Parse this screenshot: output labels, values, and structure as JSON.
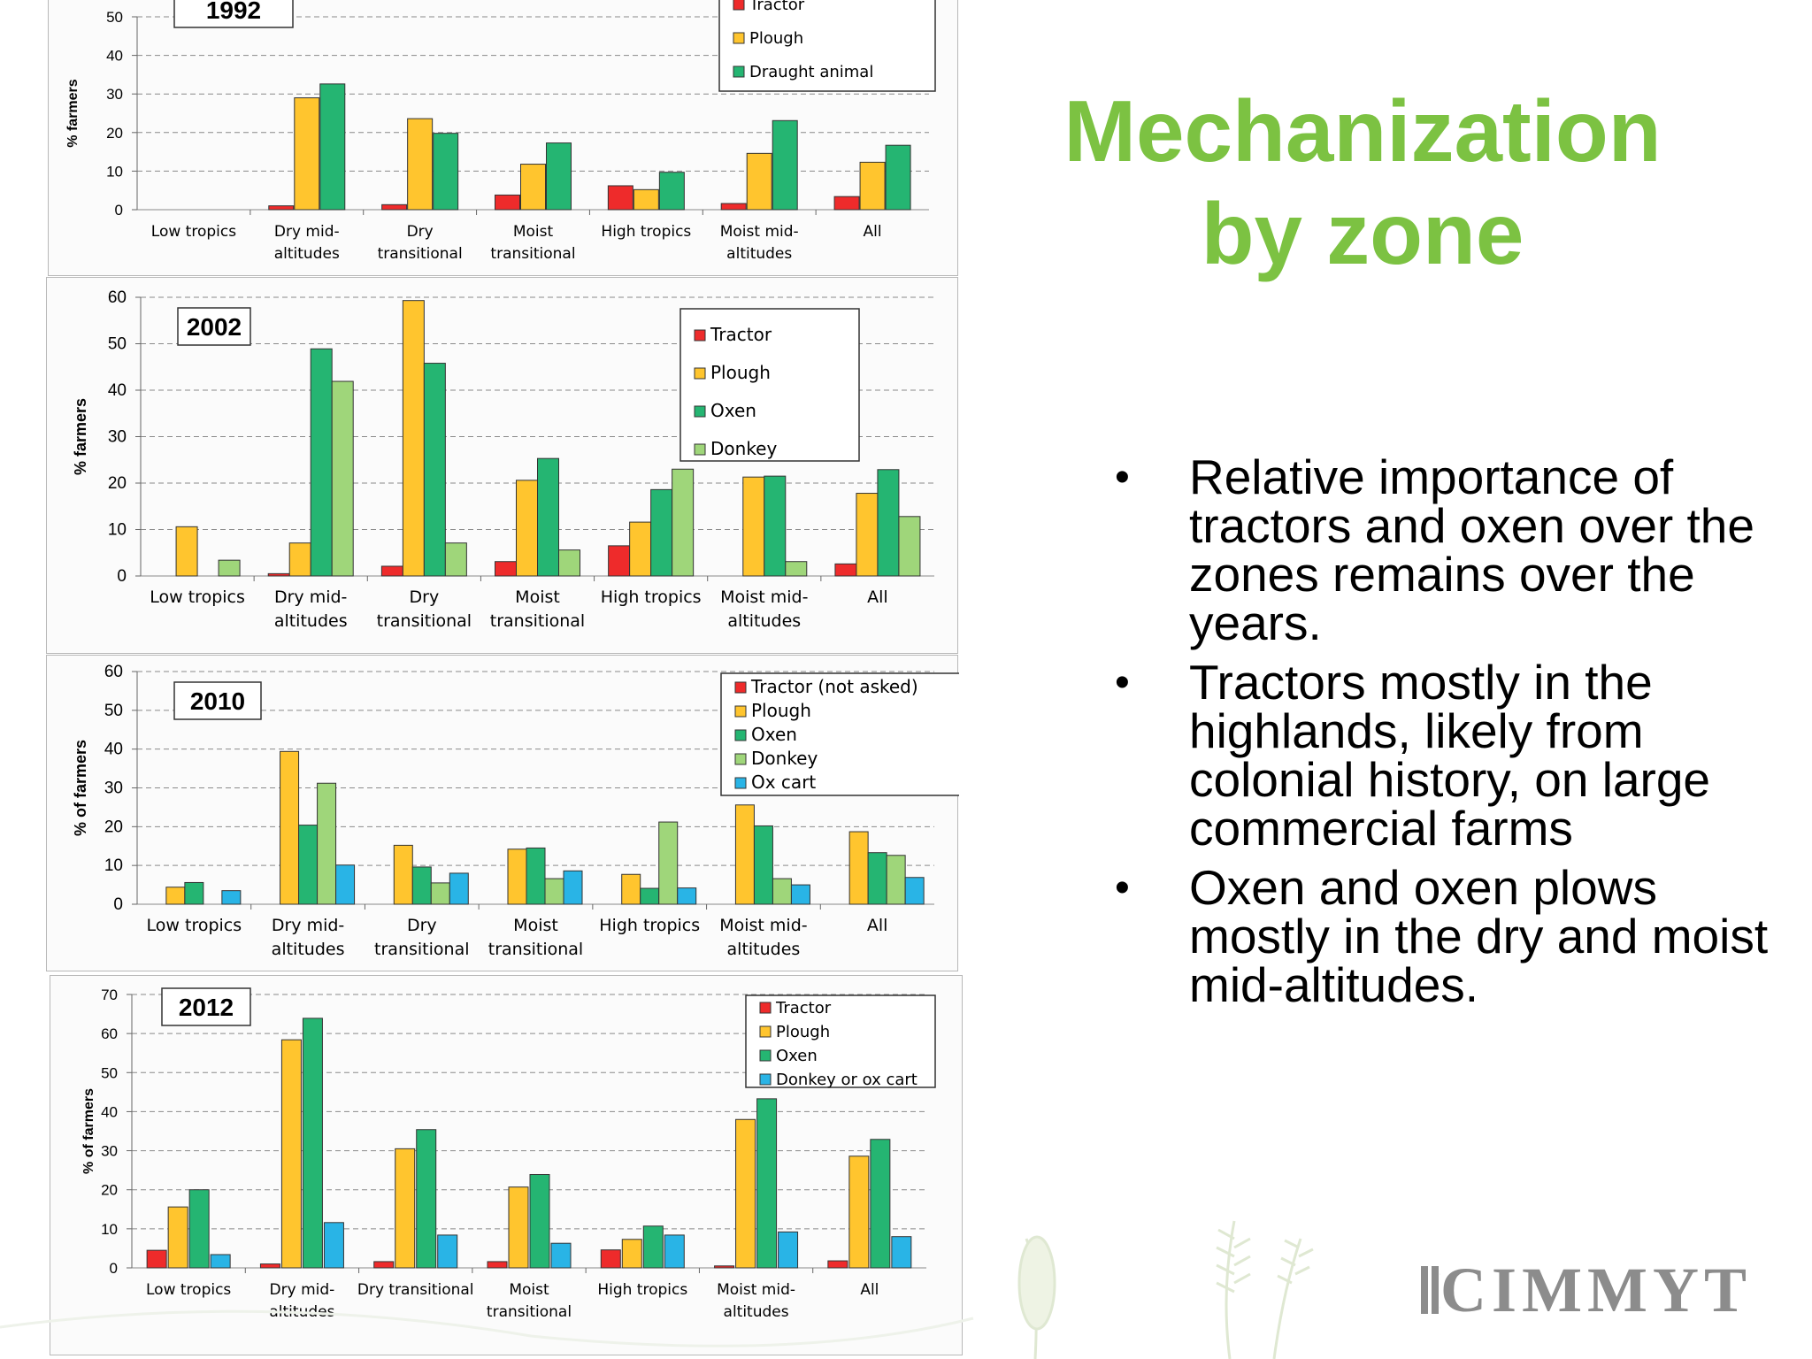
{
  "slide": {
    "title_lines": [
      "Mechanization",
      "by zone"
    ],
    "bullets": [
      "Relative importance of tractors and oxen over the zones remains over the years.",
      "Tractors mostly in the highlands, likely from colonial history, on large commercial farms",
      "Oxen and oxen plows mostly in the dry and moist mid-altitudes."
    ],
    "logo_text": "CIMMYT",
    "title_color": "#7cc242"
  },
  "chart_data": [
    {
      "type": "bar",
      "year_label": "1992",
      "ylabel": "% farmers",
      "ylim": [
        0,
        50
      ],
      "yticks": [
        0,
        10,
        20,
        30,
        40,
        50
      ],
      "categories": [
        [
          "Low tropics"
        ],
        [
          "Dry mid-",
          "altitudes"
        ],
        [
          "Dry",
          "transitional"
        ],
        [
          "Moist",
          "transitional"
        ],
        [
          "High tropics"
        ],
        [
          "Moist mid-",
          "altitudes"
        ],
        [
          "All"
        ]
      ],
      "legend_position": "top-right",
      "grid": true,
      "series": [
        {
          "name": "Tractor",
          "color": "#ee2b2b",
          "values": [
            0,
            1,
            1.3,
            3.8,
            6.2,
            1.6,
            3.4
          ]
        },
        {
          "name": "Plough",
          "color": "#ffc52e",
          "values": [
            0,
            29,
            23.6,
            11.8,
            5.2,
            14.6,
            12.3
          ]
        },
        {
          "name": "Draught animal",
          "color": "#25b572",
          "values": [
            0,
            32.6,
            19.8,
            17.3,
            9.7,
            23.1,
            16.7
          ]
        }
      ]
    },
    {
      "type": "bar",
      "year_label": "2002",
      "ylabel": "% farmers",
      "ylim": [
        0,
        60
      ],
      "yticks": [
        0,
        10,
        20,
        30,
        40,
        50,
        60
      ],
      "categories": [
        [
          "Low tropics"
        ],
        [
          "Dry mid-",
          "altitudes"
        ],
        [
          "Dry",
          "transitional"
        ],
        [
          "Moist",
          "transitional"
        ],
        [
          "High tropics"
        ],
        [
          "Moist mid-",
          "altitudes"
        ],
        [
          "All"
        ]
      ],
      "legend_position": "top-right",
      "grid": true,
      "series": [
        {
          "name": "Tractor",
          "color": "#ee2b2b",
          "values": [
            0,
            0.5,
            2.1,
            3.1,
            6.5,
            0,
            2.6
          ]
        },
        {
          "name": "Plough",
          "color": "#ffc52e",
          "values": [
            10.6,
            7.1,
            59.3,
            20.6,
            11.6,
            21.3,
            17.8
          ]
        },
        {
          "name": "Oxen",
          "color": "#25b572",
          "values": [
            0,
            48.9,
            45.8,
            25.3,
            18.6,
            21.5,
            22.9
          ]
        },
        {
          "name": "Donkey",
          "color": "#9fd67a",
          "values": [
            3.4,
            41.9,
            7.1,
            5.6,
            23,
            3.1,
            12.8
          ]
        }
      ]
    },
    {
      "type": "bar",
      "year_label": "2010",
      "ylabel": "% of farmers",
      "ylim": [
        0,
        60
      ],
      "yticks": [
        0,
        10,
        20,
        30,
        40,
        50,
        60
      ],
      "categories": [
        [
          "Low tropics"
        ],
        [
          "Dry mid-",
          "altitudes"
        ],
        [
          "Dry",
          "transitional"
        ],
        [
          "Moist",
          "transitional"
        ],
        [
          "High tropics"
        ],
        [
          "Moist mid-",
          "altitudes"
        ],
        [
          "All"
        ]
      ],
      "legend_position": "top-right",
      "grid": true,
      "series": [
        {
          "name": "Tractor (not asked)",
          "color": "#ee2b2b",
          "values": [
            0,
            0,
            0,
            0,
            0,
            0,
            0
          ]
        },
        {
          "name": "Plough",
          "color": "#ffc52e",
          "values": [
            4.4,
            39.4,
            15.2,
            14.2,
            7.7,
            25.6,
            18.7
          ]
        },
        {
          "name": "Oxen",
          "color": "#25b572",
          "values": [
            5.6,
            20.4,
            9.6,
            14.5,
            4.1,
            20.2,
            13.3
          ]
        },
        {
          "name": "Donkey",
          "color": "#9fd67a",
          "values": [
            0,
            31.2,
            5.5,
            6.6,
            21.2,
            6.6,
            12.6
          ]
        },
        {
          "name": "Ox cart",
          "color": "#29b4e6",
          "values": [
            3.5,
            10.1,
            8.0,
            8.6,
            4.2,
            5.0,
            6.9
          ]
        }
      ]
    },
    {
      "type": "bar",
      "year_label": "2012",
      "ylabel": "% of farmers",
      "ylim": [
        0,
        70
      ],
      "yticks": [
        0,
        10,
        20,
        30,
        40,
        50,
        60,
        70
      ],
      "categories": [
        [
          "Low tropics"
        ],
        [
          "Dry mid-",
          "altitudes"
        ],
        [
          "Dry transitional"
        ],
        [
          "Moist",
          "transitional"
        ],
        [
          "High tropics"
        ],
        [
          "Moist mid-",
          "altitudes"
        ],
        [
          "All"
        ]
      ],
      "legend_position": "top-right",
      "grid": true,
      "series": [
        {
          "name": "Tractor",
          "color": "#ee2b2b",
          "values": [
            4.5,
            1.0,
            1.6,
            1.6,
            4.6,
            0.5,
            1.8
          ]
        },
        {
          "name": "Plough",
          "color": "#ffc52e",
          "values": [
            15.6,
            58.4,
            30.5,
            20.7,
            7.3,
            38.0,
            28.6
          ]
        },
        {
          "name": "Oxen",
          "color": "#25b572",
          "values": [
            20.0,
            63.9,
            35.4,
            23.9,
            10.7,
            43.3,
            32.9
          ]
        },
        {
          "name": "Donkey or ox cart",
          "color": "#29b4e6",
          "values": [
            3.4,
            11.6,
            8.4,
            6.3,
            8.4,
            9.2,
            8.0
          ]
        }
      ]
    }
  ]
}
